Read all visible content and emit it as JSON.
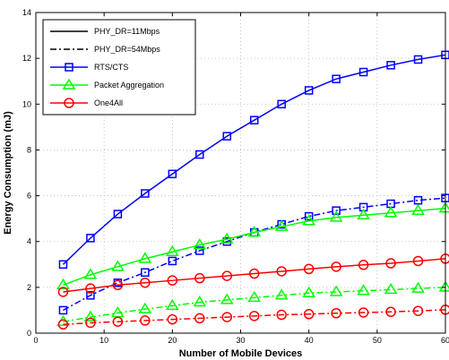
{
  "chart_data": {
    "type": "line",
    "xlabel": "Number of Mobile Devices",
    "ylabel": "Energy Consumption (mJ)",
    "xlim": [
      0,
      60
    ],
    "ylim": [
      0,
      14
    ],
    "xticks": [
      0,
      10,
      20,
      30,
      40,
      50,
      60
    ],
    "yticks": [
      0,
      2,
      4,
      6,
      8,
      10,
      12,
      14
    ],
    "grid": true,
    "legend_position": "top-left",
    "x": [
      4,
      8,
      12,
      16,
      20,
      24,
      28,
      32,
      36,
      40,
      44,
      48,
      52,
      56,
      60
    ],
    "legend": [
      {
        "label": "PHY_DR=11Mbps",
        "color": "#000000",
        "line": "solid",
        "marker": "none"
      },
      {
        "label": "PHY_DR=54Mbps",
        "color": "#000000",
        "line": "dashdot",
        "marker": "none"
      },
      {
        "label": "RTS/CTS",
        "color": "#0000ff",
        "line": "solid",
        "marker": "square"
      },
      {
        "label": "Packet Aggregation",
        "color": "#00ff00",
        "line": "solid",
        "marker": "triangle"
      },
      {
        "label": "One4All",
        "color": "#ff0000",
        "line": "solid",
        "marker": "circle"
      }
    ],
    "series": [
      {
        "name": "RTS/CTS",
        "data_rate": "11Mbps",
        "color": "#0000ff",
        "line": "solid",
        "marker": "square",
        "values": [
          3.0,
          4.15,
          5.2,
          6.1,
          6.95,
          7.8,
          8.6,
          9.3,
          10.0,
          10.6,
          11.1,
          11.4,
          11.7,
          11.95,
          12.15
        ]
      },
      {
        "name": "RTS/CTS",
        "data_rate": "54Mbps",
        "color": "#0000ff",
        "line": "dashdot",
        "marker": "square",
        "values": [
          1.0,
          1.65,
          2.2,
          2.65,
          3.15,
          3.6,
          4.0,
          4.4,
          4.75,
          5.1,
          5.35,
          5.5,
          5.65,
          5.8,
          5.9
        ]
      },
      {
        "name": "Packet Aggregation",
        "data_rate": "11Mbps",
        "color": "#00ff00",
        "line": "solid",
        "marker": "triangle",
        "values": [
          2.1,
          2.55,
          2.9,
          3.25,
          3.55,
          3.85,
          4.1,
          4.4,
          4.65,
          4.9,
          5.05,
          5.15,
          5.25,
          5.35,
          5.45
        ]
      },
      {
        "name": "Packet Aggregation",
        "data_rate": "54Mbps",
        "color": "#00ff00",
        "line": "dashdot",
        "marker": "triangle",
        "values": [
          0.5,
          0.7,
          0.88,
          1.05,
          1.2,
          1.35,
          1.45,
          1.55,
          1.65,
          1.75,
          1.8,
          1.85,
          1.9,
          1.95,
          2.0
        ]
      },
      {
        "name": "One4All",
        "data_rate": "11Mbps",
        "color": "#ff0000",
        "line": "solid",
        "marker": "circle",
        "values": [
          1.8,
          1.95,
          2.1,
          2.2,
          2.3,
          2.4,
          2.5,
          2.6,
          2.7,
          2.8,
          2.9,
          2.98,
          3.05,
          3.15,
          3.25
        ]
      },
      {
        "name": "One4All",
        "data_rate": "54Mbps",
        "color": "#ff0000",
        "line": "dashdot",
        "marker": "circle",
        "values": [
          0.38,
          0.45,
          0.5,
          0.55,
          0.6,
          0.65,
          0.7,
          0.75,
          0.8,
          0.83,
          0.87,
          0.9,
          0.93,
          0.97,
          1.02
        ]
      }
    ]
  }
}
